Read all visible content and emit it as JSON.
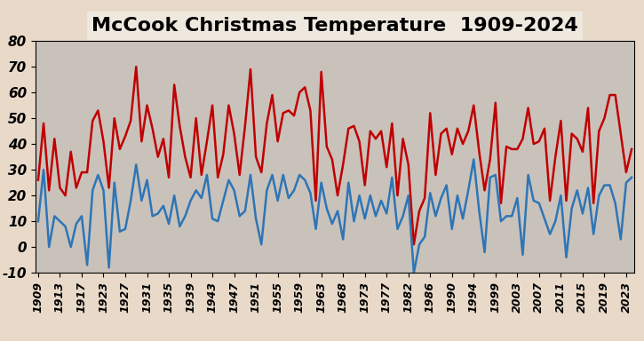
{
  "chart_data": {
    "type": "line",
    "title": "McCook Christmas Temperature  1909-2024",
    "categories": [
      "1909",
      null,
      null,
      null,
      "1913",
      null,
      null,
      null,
      "1917",
      null,
      null,
      null,
      "1923",
      null,
      null,
      null,
      "1927",
      null,
      null,
      null,
      "1931",
      null,
      null,
      null,
      "1935",
      null,
      null,
      null,
      "1939",
      null,
      null,
      null,
      "1943",
      null,
      null,
      null,
      "1947",
      null,
      null,
      null,
      "1951",
      null,
      null,
      null,
      "1955",
      null,
      null,
      null,
      "1959",
      null,
      null,
      null,
      "1963",
      null,
      null,
      null,
      "1968",
      null,
      null,
      null,
      "1973",
      null,
      null,
      null,
      "1977",
      null,
      null,
      null,
      "1982",
      null,
      null,
      null,
      "1986",
      null,
      null,
      null,
      "1990",
      null,
      null,
      null,
      "1994",
      null,
      null,
      null,
      "1999",
      null,
      null,
      null,
      "2003",
      null,
      null,
      null,
      "2007",
      null,
      null,
      null,
      "2011",
      null,
      null,
      null,
      "2015",
      null,
      null,
      null,
      "2019",
      null,
      null,
      null,
      "2023",
      null
    ],
    "series": [
      {
        "color": "#c00000",
        "values": [
          26,
          48,
          22,
          42,
          23,
          20,
          37,
          23,
          29,
          29,
          49,
          53,
          41,
          23,
          50,
          38,
          43,
          49,
          70,
          41,
          55,
          46,
          35,
          42,
          27,
          63,
          47,
          35,
          27,
          50,
          28,
          41,
          55,
          27,
          36,
          55,
          44,
          28,
          47,
          69,
          35,
          29,
          48,
          59,
          41,
          52,
          53,
          51,
          60,
          62,
          53,
          18,
          68,
          39,
          34,
          20,
          32,
          46,
          47,
          41,
          24,
          45,
          42,
          45,
          31,
          48,
          20,
          42,
          32,
          1,
          14,
          19,
          52,
          28,
          44,
          46,
          36,
          46,
          40,
          45,
          55,
          37,
          22,
          34,
          56,
          17,
          39,
          38,
          38,
          42,
          54,
          40,
          41,
          46,
          18,
          35,
          49,
          18,
          44,
          42,
          37,
          54,
          17,
          45,
          50,
          59,
          59,
          44,
          29,
          38
        ]
      },
      {
        "color": "#2e75b6",
        "values": [
          10,
          30,
          0,
          12,
          10,
          8,
          0,
          9,
          12,
          -7,
          22,
          28,
          22,
          -8,
          25,
          6,
          7,
          18,
          32,
          18,
          26,
          12,
          13,
          16,
          9,
          20,
          8,
          12,
          18,
          22,
          19,
          28,
          11,
          10,
          18,
          26,
          22,
          12,
          14,
          28,
          11,
          1,
          22,
          28,
          18,
          28,
          19,
          22,
          28,
          26,
          21,
          7,
          25,
          15,
          9,
          14,
          3,
          25,
          10,
          20,
          11,
          20,
          12,
          18,
          13,
          27,
          7,
          12,
          20,
          -10,
          1,
          4,
          21,
          12,
          19,
          24,
          7,
          20,
          11,
          22,
          34,
          14,
          -2,
          27,
          28,
          10,
          12,
          12,
          19,
          -3,
          28,
          18,
          17,
          11,
          5,
          10,
          20,
          -4,
          15,
          22,
          13,
          23,
          5,
          20,
          24,
          24,
          17,
          3,
          25,
          27
        ]
      }
    ],
    "ylim": [
      -10,
      80
    ],
    "yticks": [
      -10,
      0,
      10,
      20,
      30,
      40,
      50,
      60,
      70,
      80
    ],
    "grid": false
  }
}
